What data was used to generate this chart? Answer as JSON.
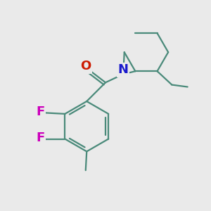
{
  "background_color": "#eaeaea",
  "bond_color": "#4a8a7a",
  "bond_width": 1.6,
  "N_color": "#1a1acc",
  "O_color": "#cc1a00",
  "F_color": "#cc00bb",
  "label_fontsize": 12,
  "figsize": [
    3.0,
    3.0
  ],
  "dpi": 100,
  "xlim": [
    0,
    10
  ],
  "ylim": [
    0,
    10
  ]
}
